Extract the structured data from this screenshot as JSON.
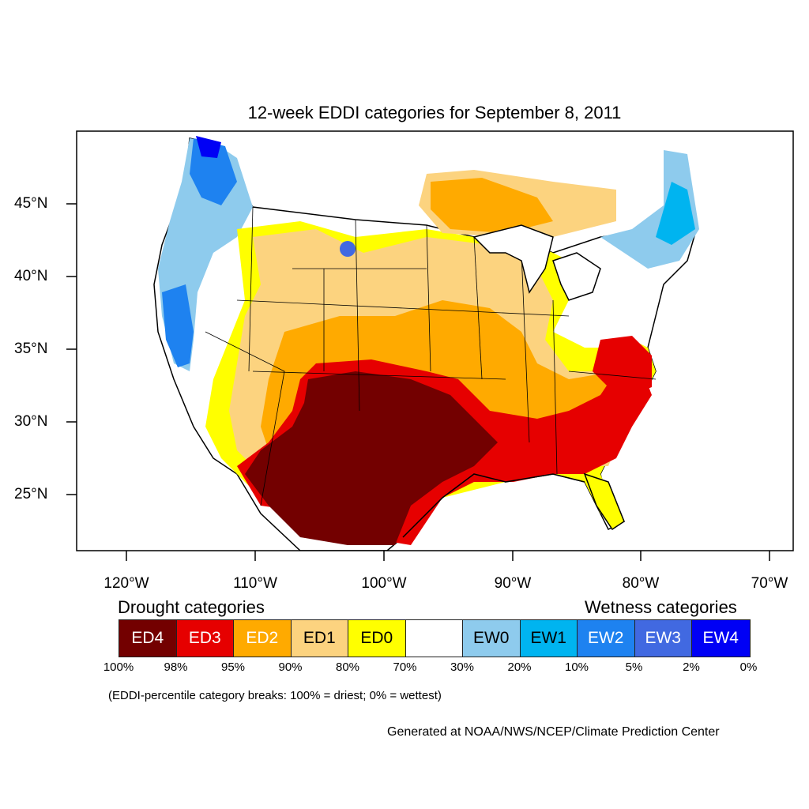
{
  "title": "12-week EDDI categories for September 8, 2011",
  "axes": {
    "lon_labels": [
      "120°W",
      "110°W",
      "100°W",
      "90°W",
      "80°W",
      "70°W"
    ],
    "lat_labels": [
      "45°N",
      "40°N",
      "35°N",
      "30°N",
      "25°N"
    ]
  },
  "legend": {
    "drought_title": "Drought categories",
    "wetness_title": "Wetness categories",
    "categories": [
      {
        "label": "ED4",
        "color": "#730000",
        "text_color": "#ffffff"
      },
      {
        "label": "ED3",
        "color": "#e60000",
        "text_color": "#ffffff"
      },
      {
        "label": "ED2",
        "color": "#ffaa00",
        "text_color": "#ffffff"
      },
      {
        "label": "ED1",
        "color": "#fcd37f",
        "text_color": "#000000"
      },
      {
        "label": "ED0",
        "color": "#ffff00",
        "text_color": "#000000"
      },
      {
        "label": "",
        "color": "#ffffff",
        "text_color": "#000000"
      },
      {
        "label": "EW0",
        "color": "#8ecbed",
        "text_color": "#000000"
      },
      {
        "label": "EW1",
        "color": "#00b4f0",
        "text_color": "#000000"
      },
      {
        "label": "EW2",
        "color": "#1e82f0",
        "text_color": "#ffffff"
      },
      {
        "label": "EW3",
        "color": "#4169e1",
        "text_color": "#ffffff"
      },
      {
        "label": "EW4",
        "color": "#0000f5",
        "text_color": "#ffffff"
      }
    ],
    "breaks": [
      "100%",
      "98%",
      "95%",
      "90%",
      "80%",
      "70%",
      "30%",
      "20%",
      "10%",
      "5%",
      "2%",
      "0%"
    ]
  },
  "breaks_note": "(EDDI-percentile category breaks: 100% = driest; 0% = wettest)",
  "credit": "Generated at NOAA/NWS/NCEP/Climate Prediction Center"
}
